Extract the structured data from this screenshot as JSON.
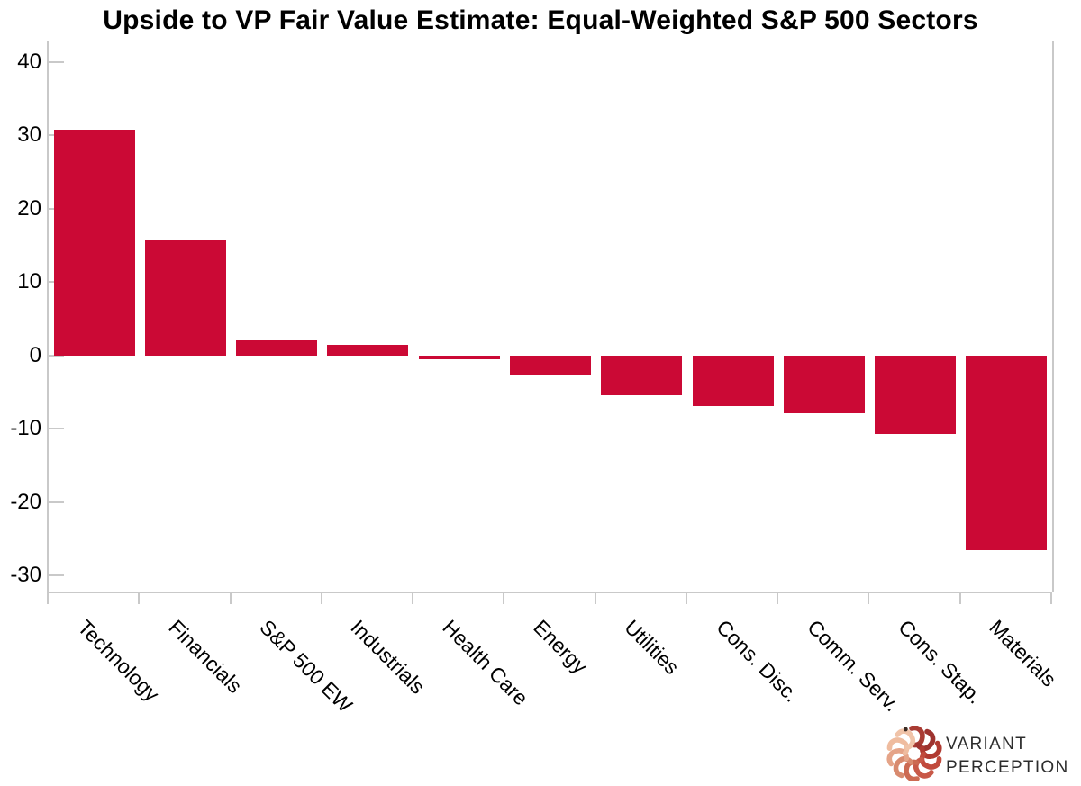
{
  "title": "Upside to VP Fair Value Estimate: Equal-Weighted S&P 500 Sectors",
  "chart_data": {
    "type": "bar",
    "title": "Upside to VP Fair Value Estimate: Equal-Weighted S&P 500 Sectors",
    "categories": [
      "Technology",
      "Financials",
      "S&P 500 EW",
      "Industrials",
      "Health Care",
      "Energy",
      "Utilities",
      "Cons. Disc.",
      "Comm. Serv.",
      "Cons. Stap.",
      "Materials"
    ],
    "values": [
      30.8,
      15.7,
      2.0,
      1.4,
      -0.5,
      -2.6,
      -5.4,
      -6.9,
      -7.9,
      -10.7,
      -26.5
    ],
    "xlabel": "",
    "ylabel": "",
    "yticks": [
      40,
      30,
      20,
      10,
      0,
      -10,
      -20,
      -30
    ],
    "ylim": [
      -32.2,
      42.9
    ],
    "grid": false,
    "legend_position": "none",
    "bar_color": "#CB0935",
    "axis_color": "#C9C9C9",
    "label_color": "#000000",
    "x_label_rotation_deg": 45
  },
  "logo": {
    "line1": "VARIANT",
    "line2": "PERCEPTION",
    "text_color": "#2D2D2D",
    "dot_color": "#3A2B24",
    "mark_colors": [
      "#A93B33",
      "#9E332F",
      "#B03A31",
      "#C14A3C",
      "#C85948",
      "#CC6A52",
      "#D88A6E",
      "#E5A488",
      "#EFBC9F",
      "#F0C3A8"
    ]
  }
}
